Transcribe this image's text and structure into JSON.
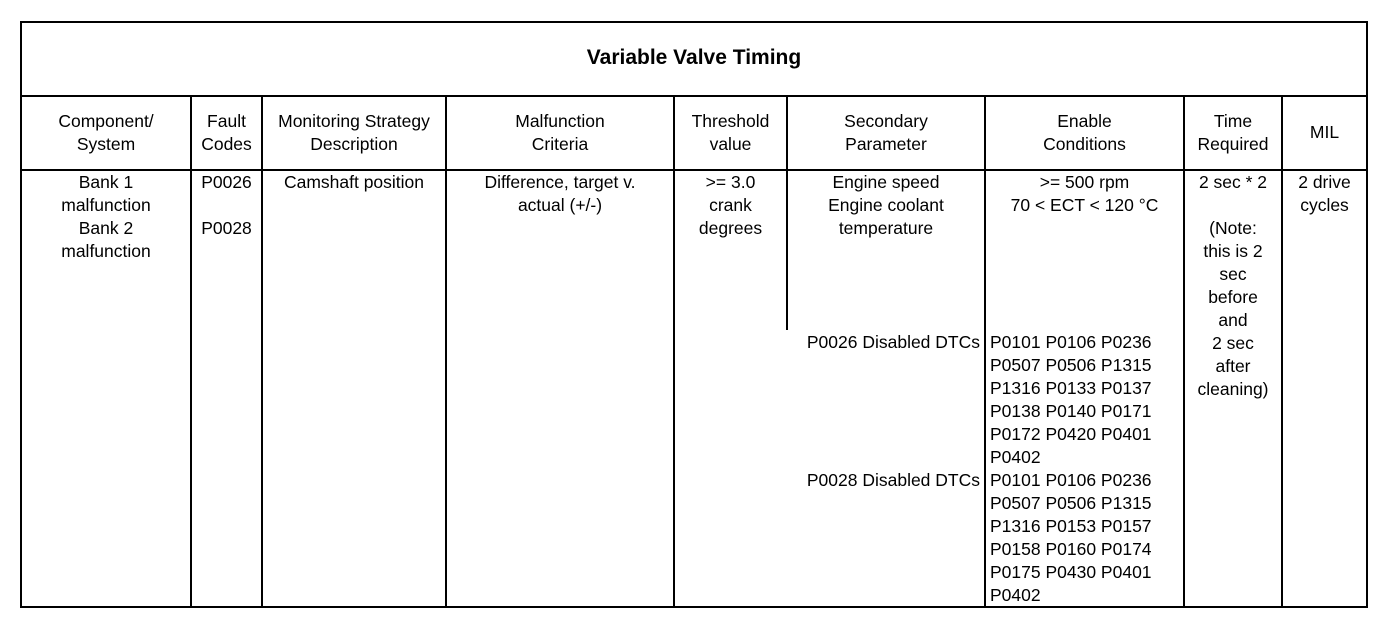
{
  "title": "Variable Valve Timing",
  "headers": [
    "Component/\nSystem",
    "Fault\nCodes",
    "Monitoring Strategy\nDescription",
    "Malfunction\nCriteria",
    "Threshold\nvalue",
    "Secondary\nParameter",
    "Enable\nConditions",
    "Time\nRequired",
    "MIL"
  ],
  "row": {
    "component": "Bank 1\nmalfunction\nBank 2\nmalfunction",
    "fault_codes": [
      "P0026",
      "P0028"
    ],
    "strategy": "Camshaft position",
    "criteria": "Difference, target v.\nactual (+/-)",
    "threshold": ">= 3.0\ncrank\ndegrees",
    "secondary": "Engine speed\nEngine coolant\ntemperature",
    "enable": ">= 500 rpm\n70 < ECT < 120 °C",
    "p0026_label": "P0026 Disabled DTCs",
    "p0026_dtcs": "P0101 P0106 P0236\nP0507 P0506 P1315\nP1316 P0133 P0137\nP0138 P0140 P0171\nP0172 P0420 P0401\nP0402",
    "p0028_label": "P0028 Disabled DTCs",
    "p0028_dtcs": "P0101 P0106 P0236\nP0507 P0506 P1315\nP1316 P0153 P0157\nP0158 P0160 P0174\nP0175 P0430 P0401\nP0402",
    "time": "2 sec * 2\n\n(Note:\nthis is 2\nsec\nbefore\nand\n2 sec\nafter\ncleaning)",
    "mil": "2 drive\ncycles"
  }
}
